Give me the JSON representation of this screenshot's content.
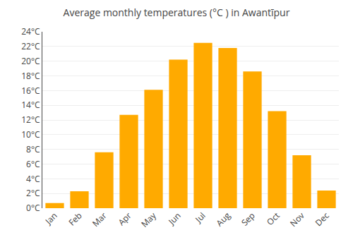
{
  "chart_data": {
    "type": "bar",
    "title": "Average monthly temperatures (°C ) in Awantīpur",
    "categories": [
      "Jan",
      "Feb",
      "Mar",
      "Apr",
      "May",
      "Jun",
      "Jul",
      "Aug",
      "Sep",
      "Oct",
      "Nov",
      "Dec"
    ],
    "values": [
      0.7,
      2.3,
      7.6,
      12.7,
      16.1,
      20.2,
      22.5,
      21.8,
      18.6,
      13.2,
      7.2,
      2.4
    ],
    "color": "#FFAA00",
    "ylim": [
      0,
      24
    ],
    "yticks": [
      {
        "value": 0,
        "label": "0°C"
      },
      {
        "value": 2,
        "label": "2°C"
      },
      {
        "value": 4,
        "label": "4°C"
      },
      {
        "value": 6,
        "label": "6°C"
      },
      {
        "value": 8,
        "label": "8°C"
      },
      {
        "value": 10,
        "label": "10°C"
      },
      {
        "value": 12,
        "label": "12°C"
      },
      {
        "value": 14,
        "label": "14°C"
      },
      {
        "value": 16,
        "label": "16°C"
      },
      {
        "value": 18,
        "label": "18°C"
      },
      {
        "value": 20,
        "label": "20°C"
      },
      {
        "value": 22,
        "label": "22°C"
      },
      {
        "value": 24,
        "label": "24°C"
      }
    ],
    "grid": true
  }
}
